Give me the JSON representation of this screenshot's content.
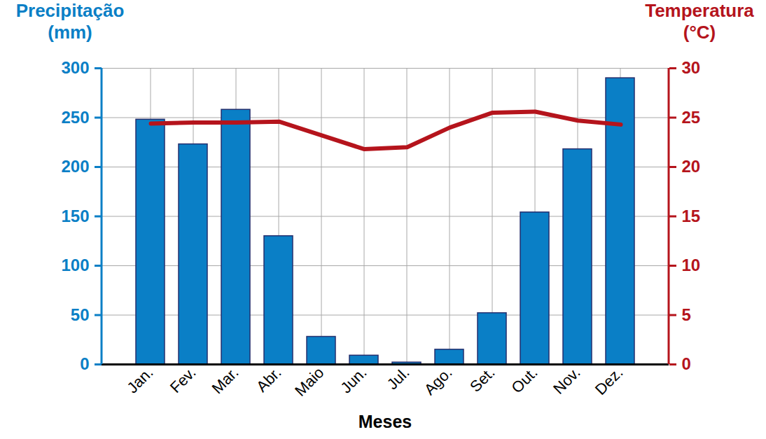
{
  "chart_data": {
    "type": "bar",
    "x_label": "Meses",
    "y_label": "Precipitação (mm)",
    "y2_label": "Temperatura (°C)",
    "categories": [
      "Jan.",
      "Fev.",
      "Mar.",
      "Abr.",
      "Maio",
      "Jun.",
      "Jul.",
      "Ago.",
      "Set.",
      "Out.",
      "Nov.",
      "Dez."
    ],
    "series": [
      {
        "name": "Precipitação (mm)",
        "type": "bar",
        "color": "#0a7fc6",
        "values": [
          248,
          223,
          258,
          130,
          28,
          9,
          2,
          15,
          52,
          154,
          218,
          290
        ]
      },
      {
        "name": "Temperatura (°C)",
        "type": "line",
        "axis": "y2",
        "color": "#b5141c",
        "values": [
          24.4,
          24.5,
          24.5,
          24.6,
          23.2,
          21.8,
          22.0,
          24.0,
          25.5,
          25.6,
          24.7,
          24.3
        ]
      }
    ],
    "ylim": [
      0,
      300
    ],
    "yticks": [
      0,
      50,
      100,
      150,
      200,
      250,
      300
    ],
    "y2lim": [
      0,
      30
    ],
    "y2ticks": [
      0,
      5,
      10,
      15,
      20,
      25,
      30
    ],
    "grid": true
  }
}
